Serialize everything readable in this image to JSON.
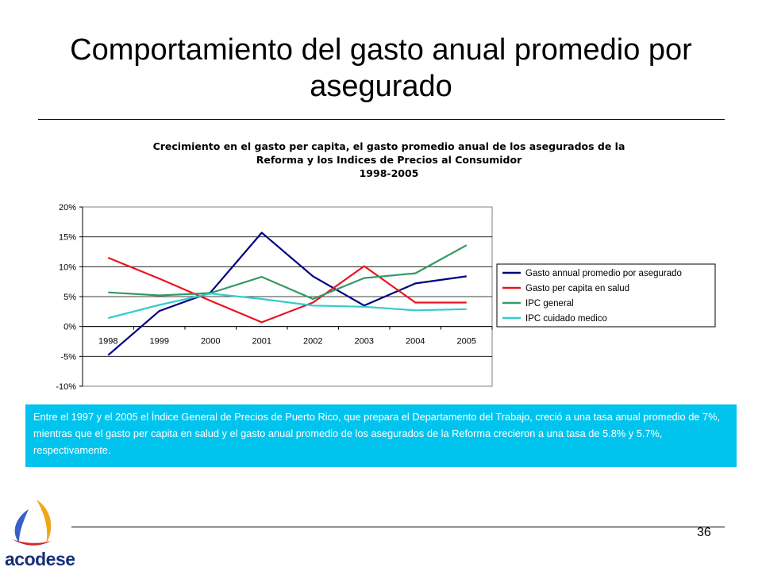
{
  "slide": {
    "title": "Comportamiento del gasto anual promedio por asegurado",
    "page_number": "36",
    "logo_text": "acodese",
    "note": "Entre el 1997 y el 2005 el Índice General de Precios de Puerto Rico, que prepara el Departamento del Trabajo, creció a una tasa anual promedio de 7%, mientras que el gasto per capita en salud y el gasto anual promedio de los asegurados de la Reforma crecieron a una tasa de 5.8% y 5.7%, respectivamente.",
    "note_bg": "#00c4ee"
  },
  "chart_data": {
    "type": "line",
    "title_lines": [
      "Crecimiento en el gasto per capita, el gasto promedio anual de los asegurados de la",
      "Reforma y los Indices de Precios al Consumidor",
      "1998-2005"
    ],
    "categories": [
      "1998",
      "1999",
      "2000",
      "2001",
      "2002",
      "2003",
      "2004",
      "2005"
    ],
    "y_ticks": [
      "20%",
      "15%",
      "10%",
      "5%",
      "0%",
      "-5%",
      "-10%"
    ],
    "ylim": [
      -10,
      20
    ],
    "y_unit": "%",
    "grid": true,
    "legend_position": "right",
    "series": [
      {
        "name": "Gasto annual promedio por asegurado",
        "color": "#000080",
        "values": [
          -4.8,
          2.6,
          5.7,
          15.7,
          8.4,
          3.5,
          7.2,
          8.4
        ]
      },
      {
        "name": "Gasto per capita en salud",
        "color": "#e8141c",
        "values": [
          11.5,
          8.0,
          4.3,
          0.7,
          4.0,
          10.1,
          4.0,
          4.0
        ]
      },
      {
        "name": "IPC general",
        "color": "#339966",
        "values": [
          5.7,
          5.2,
          5.6,
          8.3,
          4.6,
          8.1,
          8.9,
          13.6
        ]
      },
      {
        "name": "IPC cuidado medico",
        "color": "#33cccc",
        "values": [
          1.4,
          3.6,
          5.5,
          4.6,
          3.5,
          3.3,
          2.7,
          2.9
        ]
      }
    ]
  }
}
